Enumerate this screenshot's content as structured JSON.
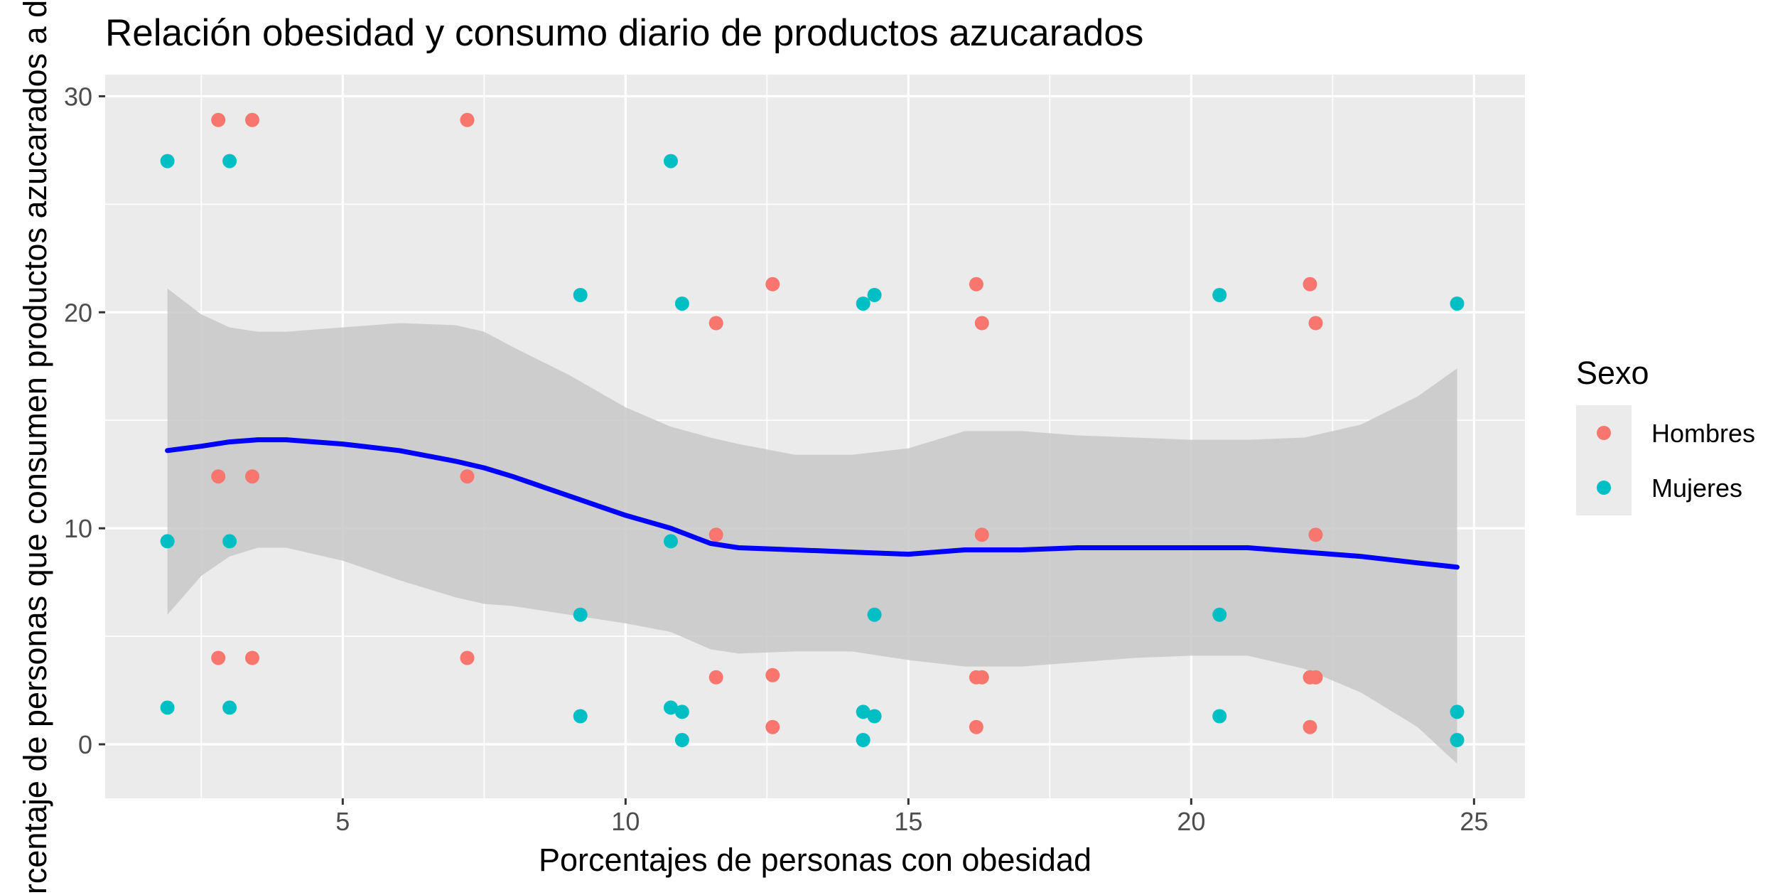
{
  "chart_data": {
    "type": "scatter",
    "title": "Relación obesidad y consumo diario de productos azucarados",
    "xlabel": "Porcentajes de personas con obesidad",
    "ylabel": "Porcentaje de personas que consumen productos azucarados a diario",
    "xlim": [
      0.8,
      25.9
    ],
    "ylim": [
      -2.5,
      31.0
    ],
    "x_ticks": [
      5,
      10,
      15,
      20,
      25
    ],
    "y_ticks": [
      0,
      10,
      20,
      30
    ],
    "x_tick_labels": [
      "5",
      "10",
      "15",
      "20",
      "25"
    ],
    "y_tick_labels": [
      "0",
      "10",
      "20",
      "30"
    ],
    "grid": true,
    "legend": {
      "title": "Sexo",
      "placement": "right",
      "entries": [
        "Hombres",
        "Mujeres"
      ]
    },
    "series": [
      {
        "name": "Hombres",
        "color": "#F8766D",
        "points": [
          {
            "x": 2.8,
            "y": 28.9
          },
          {
            "x": 3.4,
            "y": 28.9
          },
          {
            "x": 7.2,
            "y": 28.9
          },
          {
            "x": 2.8,
            "y": 12.4
          },
          {
            "x": 3.4,
            "y": 12.4
          },
          {
            "x": 7.2,
            "y": 12.4
          },
          {
            "x": 2.8,
            "y": 4.0
          },
          {
            "x": 3.4,
            "y": 4.0
          },
          {
            "x": 7.2,
            "y": 4.0
          },
          {
            "x": 11.6,
            "y": 19.5
          },
          {
            "x": 11.6,
            "y": 9.7
          },
          {
            "x": 11.6,
            "y": 3.1
          },
          {
            "x": 12.6,
            "y": 21.3
          },
          {
            "x": 12.6,
            "y": 3.2
          },
          {
            "x": 12.6,
            "y": 0.8
          },
          {
            "x": 16.2,
            "y": 21.3
          },
          {
            "x": 16.2,
            "y": 3.1
          },
          {
            "x": 16.2,
            "y": 0.8
          },
          {
            "x": 16.3,
            "y": 19.5
          },
          {
            "x": 16.3,
            "y": 9.7
          },
          {
            "x": 16.3,
            "y": 3.1
          },
          {
            "x": 22.1,
            "y": 21.3
          },
          {
            "x": 22.1,
            "y": 3.1
          },
          {
            "x": 22.1,
            "y": 0.8
          },
          {
            "x": 22.2,
            "y": 19.5
          },
          {
            "x": 22.2,
            "y": 9.7
          },
          {
            "x": 22.2,
            "y": 3.1
          }
        ]
      },
      {
        "name": "Mujeres",
        "color": "#00BFC4",
        "points": [
          {
            "x": 1.9,
            "y": 27.0
          },
          {
            "x": 3.0,
            "y": 27.0
          },
          {
            "x": 10.8,
            "y": 27.0
          },
          {
            "x": 1.9,
            "y": 9.4
          },
          {
            "x": 3.0,
            "y": 9.4
          },
          {
            "x": 10.8,
            "y": 9.4
          },
          {
            "x": 1.9,
            "y": 1.7
          },
          {
            "x": 3.0,
            "y": 1.7
          },
          {
            "x": 10.8,
            "y": 1.7
          },
          {
            "x": 9.2,
            "y": 20.8
          },
          {
            "x": 9.2,
            "y": 6.0
          },
          {
            "x": 9.2,
            "y": 1.3
          },
          {
            "x": 11.0,
            "y": 20.4
          },
          {
            "x": 11.0,
            "y": 1.5
          },
          {
            "x": 11.0,
            "y": 0.2
          },
          {
            "x": 14.2,
            "y": 20.4
          },
          {
            "x": 14.2,
            "y": 1.5
          },
          {
            "x": 14.2,
            "y": 0.2
          },
          {
            "x": 14.4,
            "y": 20.8
          },
          {
            "x": 14.4,
            "y": 6.0
          },
          {
            "x": 14.4,
            "y": 1.3
          },
          {
            "x": 20.5,
            "y": 20.8
          },
          {
            "x": 20.5,
            "y": 6.0
          },
          {
            "x": 20.5,
            "y": 1.3
          },
          {
            "x": 24.7,
            "y": 20.4
          },
          {
            "x": 24.7,
            "y": 1.5
          },
          {
            "x": 24.7,
            "y": 0.2
          }
        ]
      }
    ],
    "smooth": {
      "method": "loess",
      "color": "#0000FF",
      "band_color": "#C8C8C8",
      "points": [
        {
          "x": 1.9,
          "y": 13.6,
          "lo": 6.0,
          "hi": 21.1
        },
        {
          "x": 2.5,
          "y": 13.8,
          "lo": 7.8,
          "hi": 19.9
        },
        {
          "x": 3.0,
          "y": 14.0,
          "lo": 8.7,
          "hi": 19.3
        },
        {
          "x": 3.5,
          "y": 14.1,
          "lo": 9.1,
          "hi": 19.1
        },
        {
          "x": 4.0,
          "y": 14.1,
          "lo": 9.1,
          "hi": 19.1
        },
        {
          "x": 5.0,
          "y": 13.9,
          "lo": 8.5,
          "hi": 19.3
        },
        {
          "x": 6.0,
          "y": 13.6,
          "lo": 7.6,
          "hi": 19.5
        },
        {
          "x": 7.0,
          "y": 13.1,
          "lo": 6.8,
          "hi": 19.4
        },
        {
          "x": 7.5,
          "y": 12.8,
          "lo": 6.5,
          "hi": 19.1
        },
        {
          "x": 8.0,
          "y": 12.4,
          "lo": 6.4,
          "hi": 18.4
        },
        {
          "x": 9.0,
          "y": 11.5,
          "lo": 6.0,
          "hi": 17.1
        },
        {
          "x": 10.0,
          "y": 10.6,
          "lo": 5.6,
          "hi": 15.6
        },
        {
          "x": 10.8,
          "y": 10.0,
          "lo": 5.2,
          "hi": 14.7
        },
        {
          "x": 11.5,
          "y": 9.3,
          "lo": 4.4,
          "hi": 14.2
        },
        {
          "x": 12.0,
          "y": 9.1,
          "lo": 4.2,
          "hi": 13.9
        },
        {
          "x": 13.0,
          "y": 9.0,
          "lo": 4.3,
          "hi": 13.4
        },
        {
          "x": 14.0,
          "y": 8.9,
          "lo": 4.3,
          "hi": 13.4
        },
        {
          "x": 15.0,
          "y": 8.8,
          "lo": 3.9,
          "hi": 13.7
        },
        {
          "x": 16.0,
          "y": 9.0,
          "lo": 3.6,
          "hi": 14.5
        },
        {
          "x": 17.0,
          "y": 9.0,
          "lo": 3.6,
          "hi": 14.5
        },
        {
          "x": 18.0,
          "y": 9.1,
          "lo": 3.8,
          "hi": 14.3
        },
        {
          "x": 19.0,
          "y": 9.1,
          "lo": 4.0,
          "hi": 14.2
        },
        {
          "x": 20.0,
          "y": 9.1,
          "lo": 4.1,
          "hi": 14.1
        },
        {
          "x": 21.0,
          "y": 9.1,
          "lo": 4.1,
          "hi": 14.1
        },
        {
          "x": 22.0,
          "y": 8.9,
          "lo": 3.5,
          "hi": 14.2
        },
        {
          "x": 23.0,
          "y": 8.7,
          "lo": 2.4,
          "hi": 14.8
        },
        {
          "x": 24.0,
          "y": 8.4,
          "lo": 0.8,
          "hi": 16.1
        },
        {
          "x": 24.7,
          "y": 8.2,
          "lo": -0.9,
          "hi": 17.4
        }
      ]
    }
  }
}
